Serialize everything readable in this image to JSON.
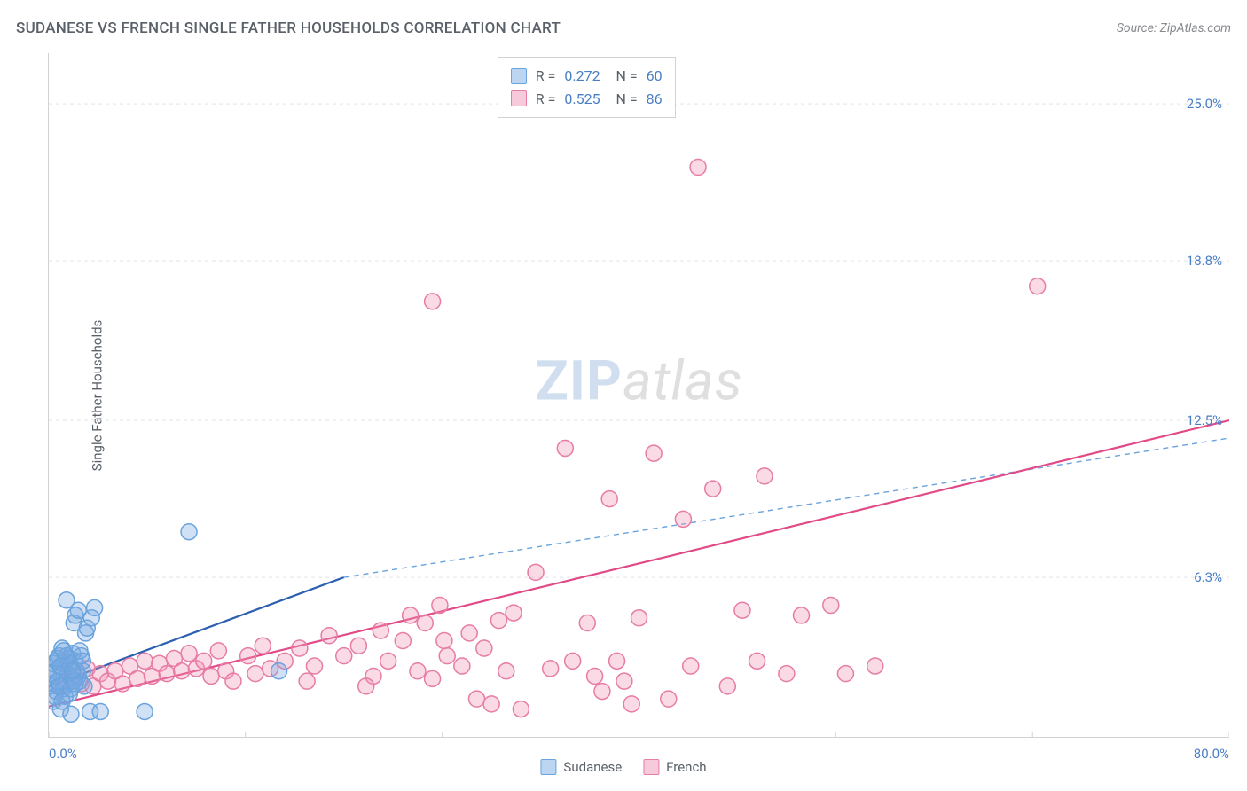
{
  "title": "SUDANESE VS FRENCH SINGLE FATHER HOUSEHOLDS CORRELATION CHART",
  "source": "Source: ZipAtlas.com",
  "y_axis_label": "Single Father Households",
  "watermark": {
    "left": "ZIP",
    "right": "atlas"
  },
  "chart": {
    "type": "scatter",
    "background_color": "#ffffff",
    "grid_color": "#e2e4e8",
    "grid_dash": "4 4",
    "axis_color": "#d0d2d6",
    "xlim": [
      0.0,
      80.0
    ],
    "ylim": [
      0.0,
      27.0
    ],
    "x_tick_positions": [
      0.0,
      13.33,
      26.67,
      40.0,
      53.33,
      66.67,
      80.0
    ],
    "x_tick_labels": {
      "min": "0.0%",
      "max": "80.0%"
    },
    "y_tick_positions": [
      6.3,
      12.5,
      18.8,
      25.0
    ],
    "y_tick_labels": [
      "6.3%",
      "12.5%",
      "18.8%",
      "25.0%"
    ],
    "tick_label_color": "#4a7ec4",
    "marker_radius": 9,
    "marker_stroke_width": 1.5,
    "series": [
      {
        "name": "Sudanese",
        "fill": "rgba(120, 170, 225, 0.35)",
        "stroke": "#6aa3dd",
        "swatch_fill": "#bcd5f0",
        "swatch_stroke": "#6aa3dd",
        "R": "0.272",
        "N": "60",
        "trend": {
          "solid": {
            "x1": 0.0,
            "y1": 2.0,
            "x2": 20.0,
            "y2": 6.3,
            "color": "#2b5fb0",
            "width": 2.2
          },
          "dashed": {
            "x1": 20.0,
            "y1": 6.3,
            "x2": 80.0,
            "y2": 11.8,
            "color": "#6aa3dd",
            "width": 1.4,
            "dash": "6 5"
          }
        },
        "points": [
          [
            0.0,
            2.3
          ],
          [
            0.2,
            2.1
          ],
          [
            0.4,
            2.6
          ],
          [
            0.5,
            1.8
          ],
          [
            0.3,
            2.9
          ],
          [
            0.6,
            2.2
          ],
          [
            0.8,
            2.0
          ],
          [
            0.9,
            2.7
          ],
          [
            1.0,
            1.9
          ],
          [
            1.1,
            3.0
          ],
          [
            1.2,
            2.1
          ],
          [
            1.3,
            2.5
          ],
          [
            1.4,
            1.7
          ],
          [
            1.5,
            2.8
          ],
          [
            1.6,
            2.3
          ],
          [
            1.7,
            4.5
          ],
          [
            1.8,
            4.8
          ],
          [
            2.0,
            5.0
          ],
          [
            2.1,
            2.2
          ],
          [
            2.3,
            2.6
          ],
          [
            2.5,
            4.1
          ],
          [
            2.6,
            4.3
          ],
          [
            2.9,
            4.7
          ],
          [
            3.1,
            5.1
          ],
          [
            1.2,
            5.4
          ],
          [
            0.8,
            1.1
          ],
          [
            2.8,
            1.0
          ],
          [
            3.5,
            1.0
          ],
          [
            6.5,
            1.0
          ],
          [
            1.5,
            0.9
          ],
          [
            0.7,
            3.2
          ],
          [
            0.9,
            3.5
          ],
          [
            1.6,
            3.3
          ],
          [
            0.4,
            1.6
          ],
          [
            0.3,
            1.4
          ],
          [
            1.0,
            2.9
          ],
          [
            1.3,
            3.1
          ],
          [
            1.8,
            3.0
          ],
          [
            2.0,
            2.4
          ],
          [
            2.2,
            3.2
          ],
          [
            2.4,
            2.0
          ],
          [
            9.5,
            8.1
          ],
          [
            15.6,
            2.6
          ],
          [
            0.5,
            3.0
          ],
          [
            0.7,
            2.0
          ],
          [
            1.1,
            1.6
          ],
          [
            1.4,
            2.9
          ],
          [
            1.9,
            2.6
          ],
          [
            0.2,
            2.5
          ],
          [
            0.6,
            3.1
          ],
          [
            1.7,
            2.2
          ],
          [
            2.1,
            3.4
          ],
          [
            0.9,
            1.4
          ],
          [
            1.2,
            3.2
          ],
          [
            1.5,
            1.9
          ],
          [
            1.8,
            2.1
          ],
          [
            2.3,
            3.0
          ],
          [
            0.8,
            2.8
          ],
          [
            1.0,
            3.4
          ],
          [
            1.6,
            2.6
          ]
        ]
      },
      {
        "name": "French",
        "fill": "rgba(240, 150, 180, 0.35)",
        "stroke": "#e77ca5",
        "swatch_fill": "#f6cada",
        "swatch_stroke": "#e77ca5",
        "R": "0.525",
        "N": "86",
        "trend": {
          "solid": {
            "x1": 0.0,
            "y1": 1.2,
            "x2": 80.0,
            "y2": 12.5,
            "color": "#e14a86",
            "width": 2.2
          }
        },
        "points": [
          [
            1.0,
            2.0
          ],
          [
            1.5,
            2.3
          ],
          [
            1.8,
            2.4
          ],
          [
            2.2,
            2.1
          ],
          [
            2.6,
            2.7
          ],
          [
            3.0,
            2.0
          ],
          [
            3.5,
            2.5
          ],
          [
            4.0,
            2.2
          ],
          [
            4.5,
            2.6
          ],
          [
            5.0,
            2.1
          ],
          [
            5.5,
            2.8
          ],
          [
            6.0,
            2.3
          ],
          [
            6.5,
            3.0
          ],
          [
            7.0,
            2.4
          ],
          [
            7.5,
            2.9
          ],
          [
            8.0,
            2.5
          ],
          [
            8.5,
            3.1
          ],
          [
            9.0,
            2.6
          ],
          [
            9.5,
            3.3
          ],
          [
            10.0,
            2.7
          ],
          [
            10.5,
            3.0
          ],
          [
            11.0,
            2.4
          ],
          [
            11.5,
            3.4
          ],
          [
            12.0,
            2.6
          ],
          [
            12.5,
            2.2
          ],
          [
            13.5,
            3.2
          ],
          [
            14.0,
            2.5
          ],
          [
            14.5,
            3.6
          ],
          [
            15.0,
            2.7
          ],
          [
            16.0,
            3.0
          ],
          [
            17.0,
            3.5
          ],
          [
            17.5,
            2.2
          ],
          [
            18.0,
            2.8
          ],
          [
            19.0,
            4.0
          ],
          [
            20.0,
            3.2
          ],
          [
            21.0,
            3.6
          ],
          [
            22.0,
            2.4
          ],
          [
            22.5,
            4.2
          ],
          [
            23.0,
            3.0
          ],
          [
            24.0,
            3.8
          ],
          [
            24.5,
            4.8
          ],
          [
            25.0,
            2.6
          ],
          [
            25.5,
            4.5
          ],
          [
            26.0,
            2.3
          ],
          [
            27.0,
            3.2
          ],
          [
            28.0,
            2.8
          ],
          [
            28.5,
            4.1
          ],
          [
            29.0,
            1.5
          ],
          [
            29.5,
            3.5
          ],
          [
            30.0,
            1.3
          ],
          [
            30.5,
            4.6
          ],
          [
            31.0,
            2.6
          ],
          [
            31.5,
            4.9
          ],
          [
            32.0,
            1.1
          ],
          [
            33.0,
            6.5
          ],
          [
            34.0,
            2.7
          ],
          [
            35.0,
            11.4
          ],
          [
            35.5,
            3.0
          ],
          [
            36.5,
            4.5
          ],
          [
            37.0,
            2.4
          ],
          [
            37.5,
            1.8
          ],
          [
            38.0,
            9.4
          ],
          [
            38.5,
            3.0
          ],
          [
            39.0,
            2.2
          ],
          [
            39.5,
            1.3
          ],
          [
            40.0,
            4.7
          ],
          [
            41.0,
            11.2
          ],
          [
            42.0,
            1.5
          ],
          [
            43.0,
            8.6
          ],
          [
            43.5,
            2.8
          ],
          [
            44.0,
            22.5
          ],
          [
            45.0,
            9.8
          ],
          [
            46.0,
            2.0
          ],
          [
            47.0,
            5.0
          ],
          [
            48.0,
            3.0
          ],
          [
            48.5,
            10.3
          ],
          [
            50.0,
            2.5
          ],
          [
            51.0,
            4.8
          ],
          [
            53.0,
            5.2
          ],
          [
            54.0,
            2.5
          ],
          [
            56.0,
            2.8
          ],
          [
            26.0,
            17.2
          ],
          [
            26.5,
            5.2
          ],
          [
            26.8,
            3.8
          ],
          [
            67.0,
            17.8
          ],
          [
            21.5,
            2.0
          ]
        ]
      }
    ],
    "bottom_legend": [
      {
        "label": "Sudanese",
        "series_index": 0
      },
      {
        "label": "French",
        "series_index": 1
      }
    ]
  }
}
